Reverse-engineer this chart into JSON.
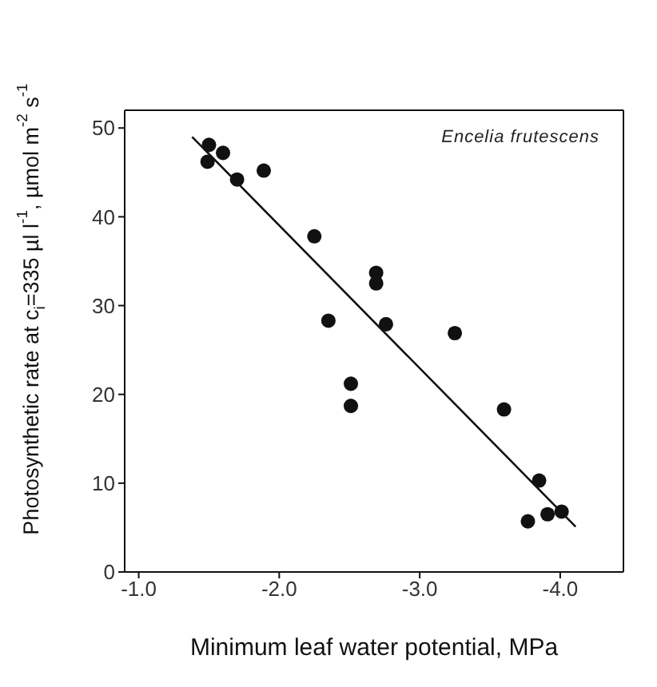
{
  "chart_data": {
    "type": "scatter",
    "xlabel": "Minimum leaf water potential, MPa",
    "ylabel": "Photosynthetic rate at c$_{i}$=335 µl l$^{-1}$, µmol m$^{-2}$ s$^{-1}$",
    "annotations": [
      "Encelia frutescens"
    ],
    "xlim": [
      -0.9,
      -4.45
    ],
    "xticks": [
      {
        "value": -1,
        "label": "-1.0"
      },
      {
        "value": -2,
        "label": "-2.0"
      },
      {
        "value": -3,
        "label": "-3.0"
      },
      {
        "value": -4,
        "label": "-4.0"
      }
    ],
    "ylim": [
      0,
      52
    ],
    "yticks": [
      0,
      10,
      20,
      30,
      40,
      50
    ],
    "marker": "circle",
    "series": [
      {
        "color": "#111111",
        "x": [
          -1.5,
          -1.49,
          -1.6,
          -1.7,
          -1.89,
          -2.25,
          -2.35,
          -2.51,
          -2.51,
          -2.69,
          -2.69,
          -2.76,
          -3.25,
          -3.6,
          -3.85,
          -3.77,
          -3.91,
          -4.01
        ],
        "values": [
          48.1,
          46.2,
          47.2,
          44.2,
          45.2,
          37.8,
          28.3,
          21.2,
          18.7,
          33.7,
          32.5,
          27.9,
          26.9,
          18.3,
          10.3,
          5.7,
          6.5,
          6.8
        ]
      },
      {
        "type": "line",
        "color": "#111111",
        "marker": "none",
        "line_style": "solid",
        "x": [
          -1.38,
          -4.11
        ],
        "values": [
          49.0,
          5.1
        ]
      }
    ]
  }
}
